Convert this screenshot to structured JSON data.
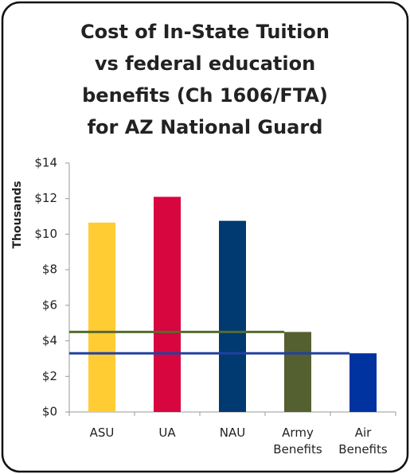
{
  "chart_data": {
    "type": "bar",
    "title": "Cost of In-State Tuition\nvs federal education\nbenefits (Ch 1606/FTA)\nfor AZ National Guard",
    "y_label": "Thousands",
    "categories": [
      "ASU",
      "UA",
      "NAU",
      "Army\nBenefits",
      "Air\nBenefits"
    ],
    "values": [
      10.65,
      12.1,
      10.75,
      4.5,
      3.3
    ],
    "colors": [
      "#ffcc33",
      "#d7063f",
      "#003a70",
      "#556030",
      "#0033a0"
    ],
    "reference_lines": [
      {
        "category": 3,
        "color": "#556b2f"
      },
      {
        "category": 4,
        "color": "#2440a0"
      }
    ],
    "ylim": [
      0,
      14
    ],
    "yticks": [
      {
        "value": 0,
        "label": "$0"
      },
      {
        "value": 2,
        "label": "$2"
      },
      {
        "value": 4,
        "label": "$4"
      },
      {
        "value": 6,
        "label": "$6"
      },
      {
        "value": 8,
        "label": "$8"
      },
      {
        "value": 10,
        "label": "$10"
      },
      {
        "value": 12,
        "label": "$12"
      },
      {
        "value": 14,
        "label": "$14"
      }
    ],
    "grid": false
  }
}
